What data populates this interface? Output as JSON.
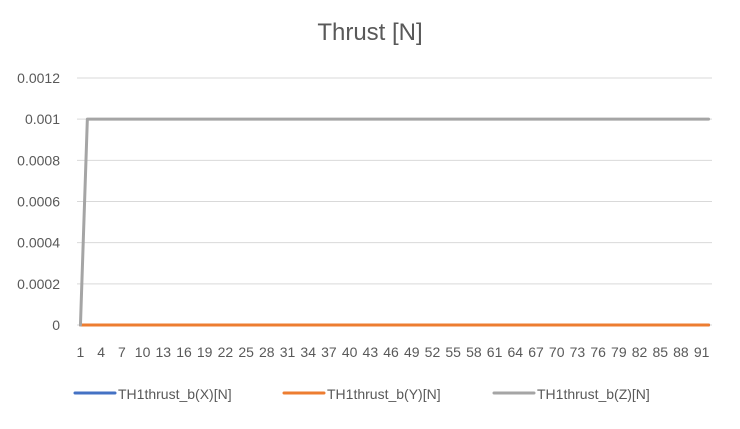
{
  "chart_data": {
    "type": "line",
    "title": "Thrust [N]",
    "xlabel": "",
    "ylabel": "",
    "x_tick_labels": [
      "1",
      "4",
      "7",
      "10",
      "13",
      "16",
      "19",
      "22",
      "25",
      "28",
      "31",
      "34",
      "37",
      "40",
      "43",
      "46",
      "49",
      "52",
      "55",
      "58",
      "61",
      "64",
      "67",
      "70",
      "73",
      "76",
      "79",
      "82",
      "85",
      "88",
      "91"
    ],
    "x_range": [
      1,
      92
    ],
    "y_tick_labels": [
      "0",
      "0.0002",
      "0.0004",
      "0.0006",
      "0.0008",
      "0.001",
      "0.0012"
    ],
    "ylim": [
      0,
      0.0012
    ],
    "grid": true,
    "legend_position": "bottom",
    "series": [
      {
        "name": "TH1thrust_b(X)[N]",
        "color": "#4472C4",
        "x": [
          1,
          92
        ],
        "y": [
          0,
          0
        ]
      },
      {
        "name": "TH1thrust_b(Y)[N]",
        "color": "#ED7D31",
        "x": [
          1,
          92
        ],
        "y": [
          0,
          0
        ]
      },
      {
        "name": "TH1thrust_b(Z)[N]",
        "color": "#A5A5A5",
        "x": [
          1,
          2,
          92
        ],
        "y": [
          0,
          0.001,
          0.001
        ]
      }
    ]
  }
}
